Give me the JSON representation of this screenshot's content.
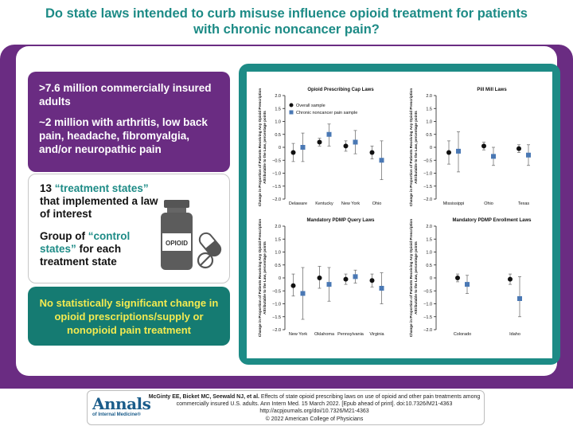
{
  "title": {
    "line1": "Do state laws intended to curb misuse influence opioid treatment for patients",
    "line2": "with chronic noncancer pain?"
  },
  "population": {
    "line1": ">7.6 million commercially insured adults",
    "line2": "~2 million with arthritis, low back pain, headache, fibromyalgia, and/or neuropathic pain"
  },
  "design": {
    "treat_num": "13",
    "treat_term": "“treatment states”",
    "treat_rest": "that implemented a law of interest",
    "control_pre": "Group of",
    "control_term": "“control states”",
    "control_rest": "for each treatment state",
    "bottle_label": "OPIOID"
  },
  "conclusion": "No statistically significant change in opioid prescriptions/supply or nonopioid pain treatment",
  "colors": {
    "teal": "#1d8b86",
    "purple": "#6a2c82",
    "green": "#157b72",
    "yellow": "#f3ea50",
    "square": "#4a78b4"
  },
  "chart_data": [
    {
      "type": "scatter",
      "title": "Opioid Prescribing Cap Laws",
      "ylabel": "Change in Proportion of Patients Receiving Any Opioid Prescription Attributable to the Law, percentage points",
      "ylim": [
        -2.0,
        2.0
      ],
      "yticks": [
        "2.0",
        "1.5",
        "1.0",
        "0.5",
        "0",
        "−0.5",
        "−1.0",
        "−1.5",
        "−2.0"
      ],
      "legend": [
        "Overall sample",
        "Chronic noncancer pain sample"
      ],
      "categories": [
        "Delaware",
        "Kentucky",
        "New York",
        "Ohio"
      ],
      "series": [
        {
          "name": "Overall sample",
          "values": [
            -0.2,
            0.2,
            0.05,
            -0.2
          ],
          "low": [
            -0.55,
            0.05,
            -0.15,
            -0.45
          ],
          "high": [
            0.15,
            0.35,
            0.25,
            0.05
          ]
        },
        {
          "name": "Chronic noncancer pain sample",
          "values": [
            0.0,
            0.5,
            0.2,
            -0.5
          ],
          "low": [
            -0.55,
            0.05,
            -0.25,
            -1.25
          ],
          "high": [
            0.55,
            0.9,
            0.65,
            0.25
          ]
        }
      ]
    },
    {
      "type": "scatter",
      "title": "Pill Mill Laws",
      "ylabel": "Change in Proportion of Patients Receiving Any Opioid Prescription Attributable to the Law, percentage points",
      "ylim": [
        -2.0,
        2.0
      ],
      "yticks": [
        "2.0",
        "1.5",
        "1.0",
        "0.5",
        "0",
        "−0.5",
        "−1.0",
        "−1.5",
        "−2.0"
      ],
      "categories": [
        "Mississippi",
        "Ohio",
        "Texas"
      ],
      "series": [
        {
          "name": "Overall sample",
          "values": [
            -0.2,
            0.05,
            -0.05
          ],
          "low": [
            -0.65,
            -0.1,
            -0.2
          ],
          "high": [
            0.25,
            0.2,
            0.1
          ]
        },
        {
          "name": "Chronic noncancer pain sample",
          "values": [
            -0.15,
            -0.35,
            -0.3
          ],
          "low": [
            -0.95,
            -0.7,
            -0.7
          ],
          "high": [
            0.6,
            0.0,
            0.1
          ]
        }
      ]
    },
    {
      "type": "scatter",
      "title": "Mandatory PDMP Query Laws",
      "ylabel": "Change in Proportion of Patients Receiving Any Opioid Prescription Attributable to the Law, percentage points",
      "ylim": [
        -2.0,
        2.0
      ],
      "yticks": [
        "2.0",
        "1.5",
        "1.0",
        "0.5",
        "0",
        "−0.5",
        "−1.0",
        "−1.5",
        "−2.0"
      ],
      "categories": [
        "New York",
        "Oklahoma",
        "Pennsylvania",
        "Virginia"
      ],
      "series": [
        {
          "name": "Overall sample",
          "values": [
            -0.3,
            0.0,
            -0.05,
            -0.1
          ],
          "low": [
            -0.7,
            -0.4,
            -0.25,
            -0.35
          ],
          "high": [
            0.15,
            0.45,
            0.15,
            0.15
          ]
        },
        {
          "name": "Chronic noncancer pain sample",
          "values": [
            -0.6,
            -0.25,
            0.05,
            -0.4
          ],
          "low": [
            -1.6,
            -0.9,
            -0.2,
            -1.0
          ],
          "high": [
            0.4,
            0.4,
            0.3,
            0.2
          ]
        }
      ]
    },
    {
      "type": "scatter",
      "title": "Mandatory PDMP Enrollment Laws",
      "ylabel": "Change in Proportion of Patients Receiving Any Opioid Prescription Attributable to the Law, percentage points",
      "ylim": [
        -2.0,
        2.0
      ],
      "yticks": [
        "2.0",
        "1.5",
        "1.0",
        "0.5",
        "0",
        "−0.5",
        "−1.0",
        "−1.5",
        "−2.0"
      ],
      "categories": [
        "Colorado",
        "Idaho"
      ],
      "series": [
        {
          "name": "Overall sample",
          "values": [
            0.0,
            -0.05
          ],
          "low": [
            -0.15,
            -0.25
          ],
          "high": [
            0.15,
            0.15
          ]
        },
        {
          "name": "Chronic noncancer pain sample",
          "values": [
            -0.25,
            -0.8
          ],
          "low": [
            -0.6,
            -1.5
          ],
          "high": [
            0.1,
            0.05
          ]
        }
      ]
    }
  ],
  "footer": {
    "logo_main": "Annals",
    "logo_sub": "of Internal Medicine®",
    "authors": "McGinty EE, Bicket MC, Seewald NJ, et al.",
    "citation": " Effects of state opioid prescribing laws on use of opioid and other pain treatments among commercially insured U.S. adults. Ann Intern Med. 15 March 2022. [Epub ahead of print]. doi:10.7326/M21-4363",
    "url": "http://acpjournals.org/doi/10.7326/M21-4363",
    "copyright": "© 2022 American College of Physicians"
  }
}
